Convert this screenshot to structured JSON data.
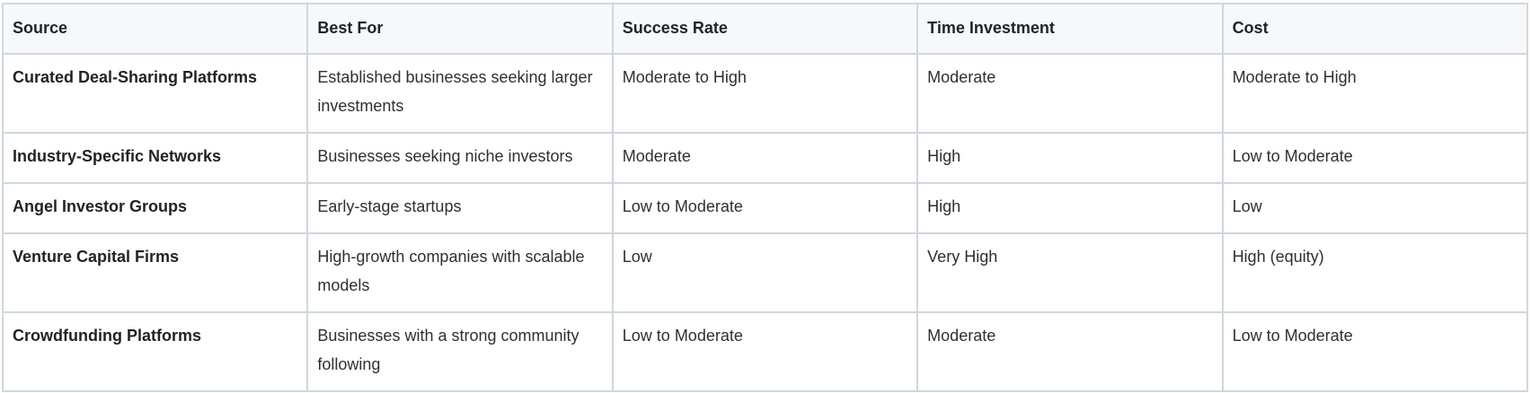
{
  "table": {
    "headers": [
      "Source",
      "Best For",
      "Success Rate",
      "Time Investment",
      "Cost"
    ],
    "rows": [
      [
        "Curated Deal-Sharing Platforms",
        "Established businesses seeking larger investments",
        "Moderate to High",
        "Moderate",
        "Moderate to High"
      ],
      [
        "Industry-Specific Networks",
        "Businesses seeking niche investors",
        "Moderate",
        "High",
        "Low to Moderate"
      ],
      [
        "Angel Investor Groups",
        "Early-stage startups",
        "Low to Moderate",
        "High",
        "Low"
      ],
      [
        "Venture Capital Firms",
        "High-growth companies with scalable models",
        "Low",
        "Very High",
        "High (equity)"
      ],
      [
        "Crowdfunding Platforms",
        "Businesses with a strong community following",
        "Low to Moderate",
        "Moderate",
        "Low to Moderate"
      ]
    ]
  },
  "colors": {
    "header_bg": "#f6f8fa",
    "border": "#d0d7de",
    "text": "#1f2328"
  }
}
